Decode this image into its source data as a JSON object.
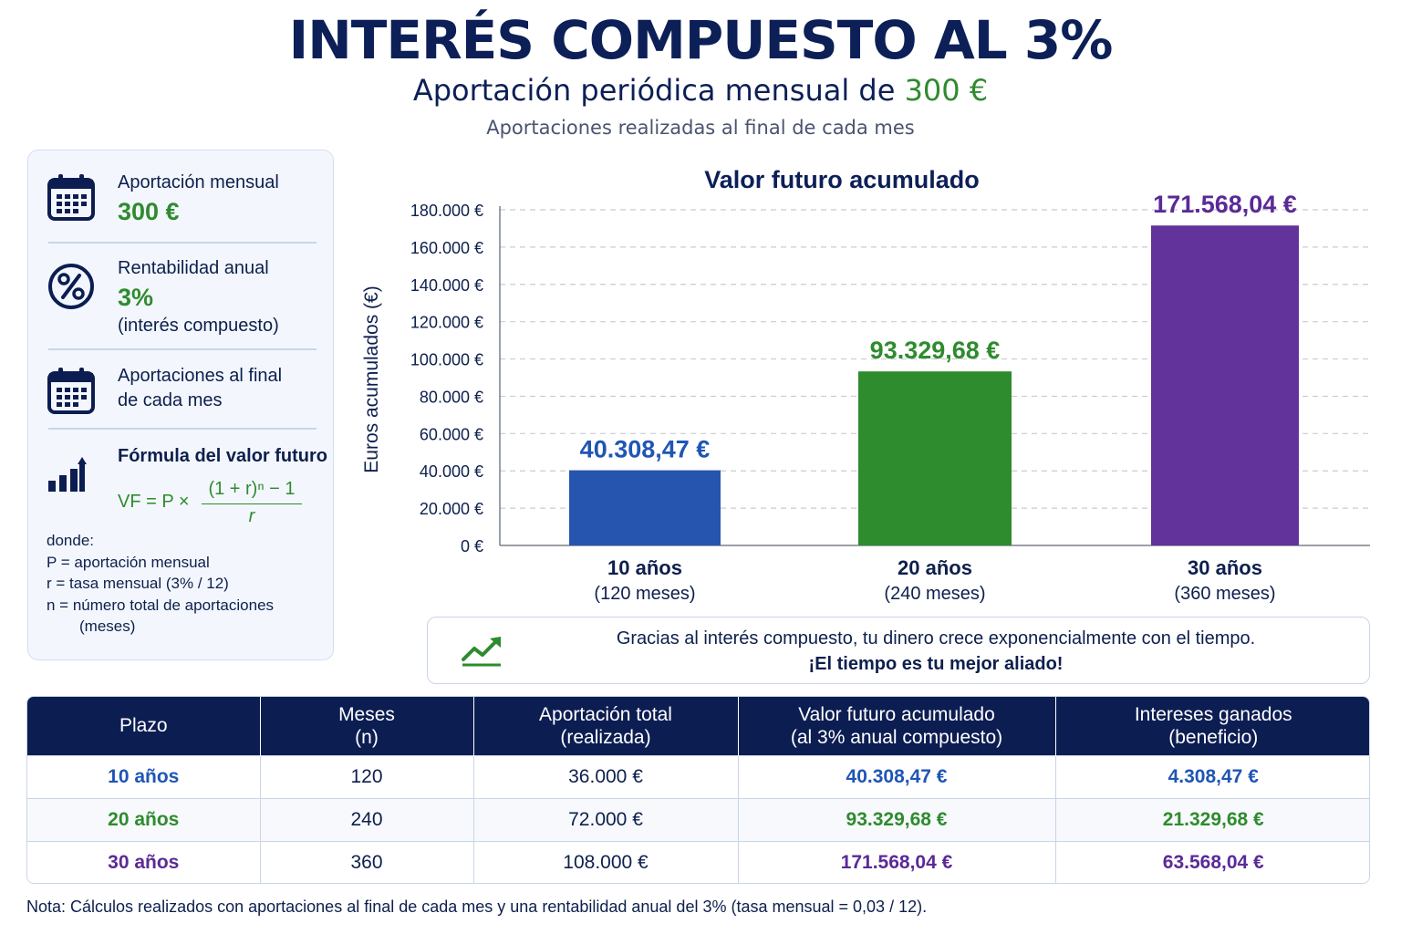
{
  "header": {
    "title": "INTERÉS COMPUESTO AL 3%",
    "subtitle_prefix": "Aportación periódica mensual de ",
    "subtitle_amount": "300 €",
    "subnote": "Aportaciones realizadas al final de cada mes"
  },
  "panel": {
    "monthly": {
      "label": "Aportación mensual",
      "value": "300 €",
      "icon": "calendar-icon"
    },
    "rate": {
      "label": "Rentabilidad anual",
      "value": "3%",
      "note": "(interés compuesto)",
      "icon": "percent-icon"
    },
    "timing": {
      "line1": "Aportaciones al final",
      "line2": "de cada mes",
      "icon": "calendar-icon"
    },
    "formula": {
      "label": "Fórmula del valor futuro",
      "lhs": "VF = P ×",
      "numerator": "(1 + r)ⁿ − 1",
      "denominator": "r",
      "icon": "bar-chart-icon"
    },
    "where": {
      "title": "donde:",
      "p": "P =  aportación mensual",
      "r": "r =  tasa mensual (3% / 12)",
      "n": "n =  número total de aportaciones",
      "n2": "(meses)"
    }
  },
  "chart_data": {
    "type": "bar",
    "title": "Valor futuro acumulado",
    "ylabel": "Euros acumulados (€)",
    "xlabel": "",
    "ylim": [
      0,
      180000
    ],
    "yticks": [
      0,
      20000,
      40000,
      60000,
      80000,
      100000,
      120000,
      140000,
      160000,
      180000
    ],
    "ytick_labels": [
      "0 €",
      "20.000 €",
      "40.000 €",
      "60.000 €",
      "80.000 €",
      "100.000 €",
      "120.000 €",
      "140.000 €",
      "160.000 €",
      "180.000 €"
    ],
    "grid": true,
    "categories": [
      "10 años",
      "20 años",
      "30 años"
    ],
    "category_sublabels": [
      "(120 meses)",
      "(240 meses)",
      "(360 meses)"
    ],
    "values": [
      40308.47,
      93329.68,
      171568.04
    ],
    "value_labels": [
      "40.308,47 €",
      "93.329,68 €",
      "171.568,04 €"
    ],
    "colors": [
      "#2655b0",
      "#2e8b2e",
      "#62339a"
    ],
    "label_colors": [
      "#1f55b5",
      "#2e8b2e",
      "#5b2a96"
    ]
  },
  "callout": {
    "line1": "Gracias al interés compuesto, tu dinero crece exponencialmente con el tiempo.",
    "line2": "¡El tiempo es tu mejor aliado!",
    "icon": "trend-up-icon"
  },
  "table": {
    "headers": [
      [
        "Plazo",
        ""
      ],
      [
        "Meses",
        "(n)"
      ],
      [
        "Aportación total",
        "(realizada)"
      ],
      [
        "Valor futuro acumulado",
        "(al 3% anual compuesto)"
      ],
      [
        "Intereses ganados",
        "(beneficio)"
      ]
    ],
    "rows": [
      [
        "10 años",
        "120",
        "36.000 €",
        "40.308,47 €",
        "4.308,47 €"
      ],
      [
        "20 años",
        "240",
        "72.000 €",
        "93.329,68 €",
        "21.329,68 €"
      ],
      [
        "30 años",
        "360",
        "108.000 €",
        "171.568,04 €",
        "63.568,04 €"
      ]
    ]
  },
  "note": "Nota: Cálculos realizados con aportaciones al final de cada mes y una rentabilidad anual del 3% (tasa mensual = 0,03 / 12)."
}
